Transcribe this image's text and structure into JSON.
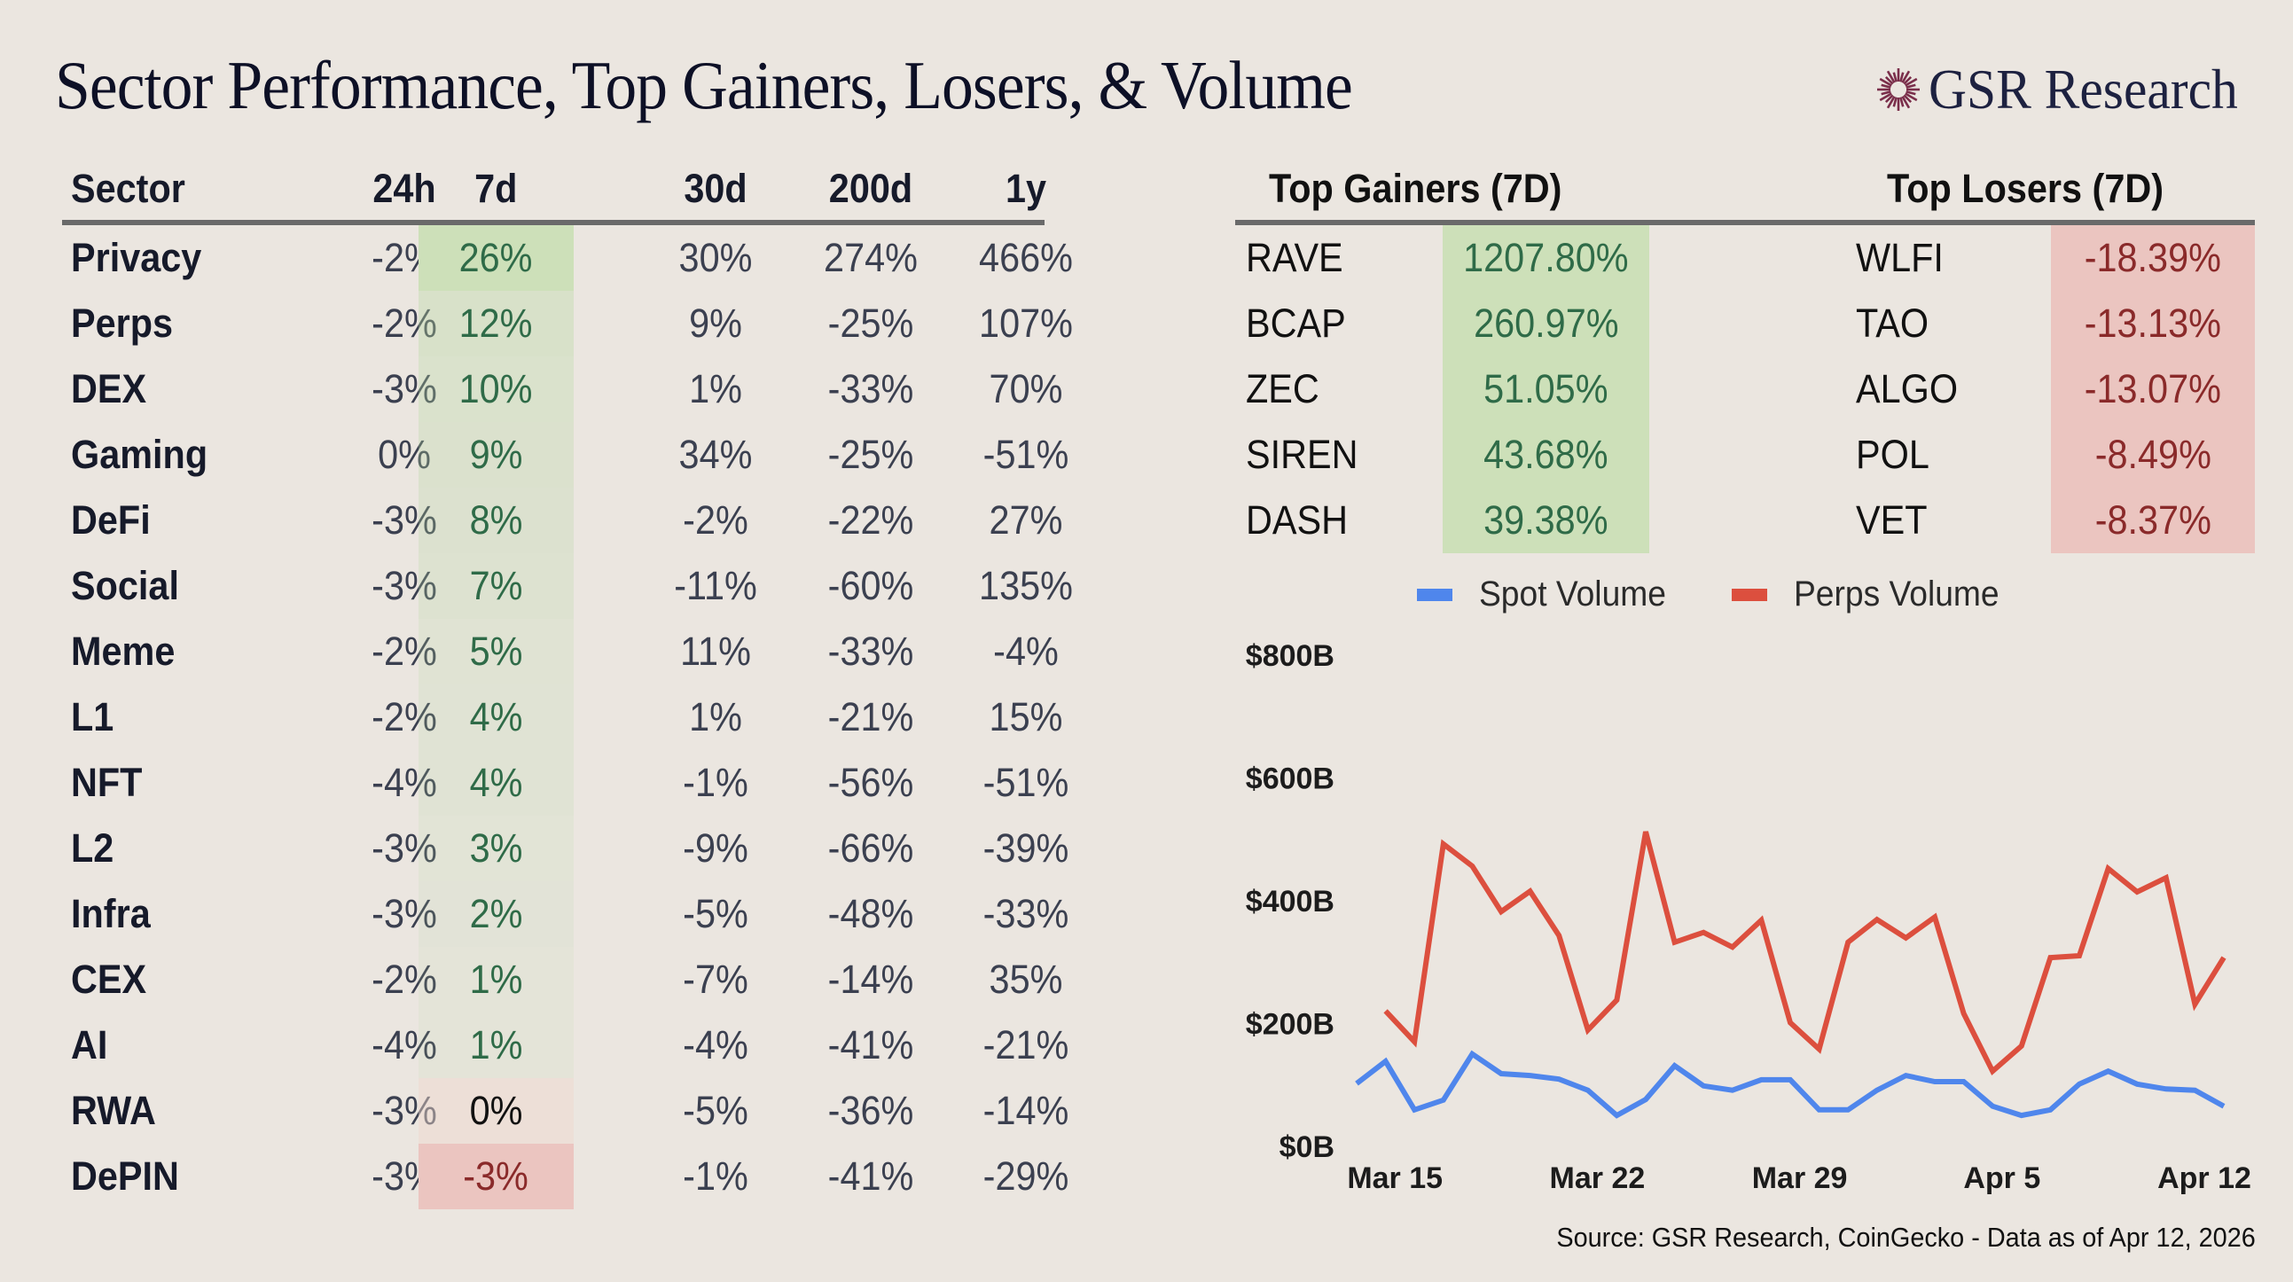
{
  "title": "Sector Performance, Top Gainers, Losers, & Volume",
  "logo": {
    "icon": "sunburst-icon",
    "text": "GSR Research",
    "icon_color": "#7a2e4a"
  },
  "colors": {
    "positive_bg": "#cde0b9",
    "positive_text": "#2f6b48",
    "negative_bg": "#ebc5c0",
    "negative_text": "#8a2a2a",
    "spot": "#4f86ec",
    "perps": "#dc4f3e"
  },
  "sector_table": {
    "headers": [
      "Sector",
      "24h",
      "7d",
      "30d",
      "200d",
      "1y"
    ],
    "rows": [
      {
        "sector": "Privacy",
        "d24h": "-2%",
        "d7": "26%",
        "d30": "30%",
        "d200": "274%",
        "y1": "466%"
      },
      {
        "sector": "Perps",
        "d24h": "-2%",
        "d7": "12%",
        "d30": "9%",
        "d200": "-25%",
        "y1": "107%"
      },
      {
        "sector": "DEX",
        "d24h": "-3%",
        "d7": "10%",
        "d30": "1%",
        "d200": "-33%",
        "y1": "70%"
      },
      {
        "sector": "Gaming",
        "d24h": "0%",
        "d7": "9%",
        "d30": "34%",
        "d200": "-25%",
        "y1": "-51%"
      },
      {
        "sector": "DeFi",
        "d24h": "-3%",
        "d7": "8%",
        "d30": "-2%",
        "d200": "-22%",
        "y1": "27%"
      },
      {
        "sector": "Social",
        "d24h": "-3%",
        "d7": "7%",
        "d30": "-11%",
        "d200": "-60%",
        "y1": "135%"
      },
      {
        "sector": "Meme",
        "d24h": "-2%",
        "d7": "5%",
        "d30": "11%",
        "d200": "-33%",
        "y1": "-4%"
      },
      {
        "sector": "L1",
        "d24h": "-2%",
        "d7": "4%",
        "d30": "1%",
        "d200": "-21%",
        "y1": "15%"
      },
      {
        "sector": "NFT",
        "d24h": "-4%",
        "d7": "4%",
        "d30": "-1%",
        "d200": "-56%",
        "y1": "-51%"
      },
      {
        "sector": "L2",
        "d24h": "-3%",
        "d7": "3%",
        "d30": "-9%",
        "d200": "-66%",
        "y1": "-39%"
      },
      {
        "sector": "Infra",
        "d24h": "-3%",
        "d7": "2%",
        "d30": "-5%",
        "d200": "-48%",
        "y1": "-33%"
      },
      {
        "sector": "CEX",
        "d24h": "-2%",
        "d7": "1%",
        "d30": "-7%",
        "d200": "-14%",
        "y1": "35%"
      },
      {
        "sector": "AI",
        "d24h": "-4%",
        "d7": "1%",
        "d30": "-4%",
        "d200": "-41%",
        "y1": "-21%"
      },
      {
        "sector": "RWA",
        "d24h": "-3%",
        "d7": "0%",
        "d30": "-5%",
        "d200": "-36%",
        "y1": "-14%"
      },
      {
        "sector": "DePIN",
        "d24h": "-3%",
        "d7": "-3%",
        "d30": "-1%",
        "d200": "-41%",
        "y1": "-29%"
      }
    ]
  },
  "top_gainers": {
    "header": "Top Gainers (7D)",
    "rows": [
      {
        "ticker": "RAVE",
        "change": "1207.80%"
      },
      {
        "ticker": "BCAP",
        "change": "260.97%"
      },
      {
        "ticker": "ZEC",
        "change": "51.05%"
      },
      {
        "ticker": "SIREN",
        "change": "43.68%"
      },
      {
        "ticker": "DASH",
        "change": "39.38%"
      }
    ]
  },
  "top_losers": {
    "header": "Top Losers (7D)",
    "rows": [
      {
        "ticker": "WLFI",
        "change": "-18.39%"
      },
      {
        "ticker": "TAO",
        "change": "-13.13%"
      },
      {
        "ticker": "ALGO",
        "change": "-13.07%"
      },
      {
        "ticker": "POL",
        "change": "-8.49%"
      },
      {
        "ticker": "VET",
        "change": "-8.37%"
      }
    ]
  },
  "chart_data": {
    "type": "line",
    "title": "",
    "xlabel": "",
    "ylabel": "",
    "ylim": [
      0,
      800
    ],
    "yticks": [
      0,
      200,
      400,
      600,
      800
    ],
    "ytick_labels": [
      "$0B",
      "$200B",
      "$400B",
      "$600B",
      "$800B"
    ],
    "xtick_labels": [
      "Mar 15",
      "Mar 22",
      "Mar 29",
      "Apr 5",
      "Apr 12"
    ],
    "xtick_index": [
      2,
      9,
      16,
      23,
      30
    ],
    "x": [
      "Mar 13",
      "Mar 14",
      "Mar 15",
      "Mar 16",
      "Mar 17",
      "Mar 18",
      "Mar 19",
      "Mar 20",
      "Mar 21",
      "Mar 22",
      "Mar 23",
      "Mar 24",
      "Mar 25",
      "Mar 26",
      "Mar 27",
      "Mar 28",
      "Mar 29",
      "Mar 30",
      "Mar 31",
      "Apr 1",
      "Apr 2",
      "Apr 3",
      "Apr 4",
      "Apr 5",
      "Apr 6",
      "Apr 7",
      "Apr 8",
      "Apr 9",
      "Apr 10",
      "Apr 11",
      "Apr 12"
    ],
    "grid": false,
    "legend": "top",
    "series": [
      {
        "name": "Spot Volume",
        "color": "#4f86ec",
        "values": [
          101,
          137,
          58,
          74,
          149,
          117,
          114,
          108,
          90,
          49,
          75,
          130,
          97,
          90,
          107,
          107,
          58,
          58,
          90,
          114,
          104,
          104,
          64,
          49,
          58,
          100,
          121,
          100,
          92,
          90,
          64
        ]
      },
      {
        "name": "Perps Volume",
        "color": "#dc4f3e",
        "values": [
          null,
          219,
          169,
          491,
          455,
          381,
          414,
          342,
          188,
          237,
          511,
          331,
          347,
          323,
          367,
          200,
          157,
          331,
          368,
          338,
          372,
          215,
          121,
          162,
          306,
          309,
          451,
          413,
          436,
          230,
          306
        ]
      }
    ]
  },
  "source": "Source: GSR Research, CoinGecko - Data as of Apr 12, 2026"
}
